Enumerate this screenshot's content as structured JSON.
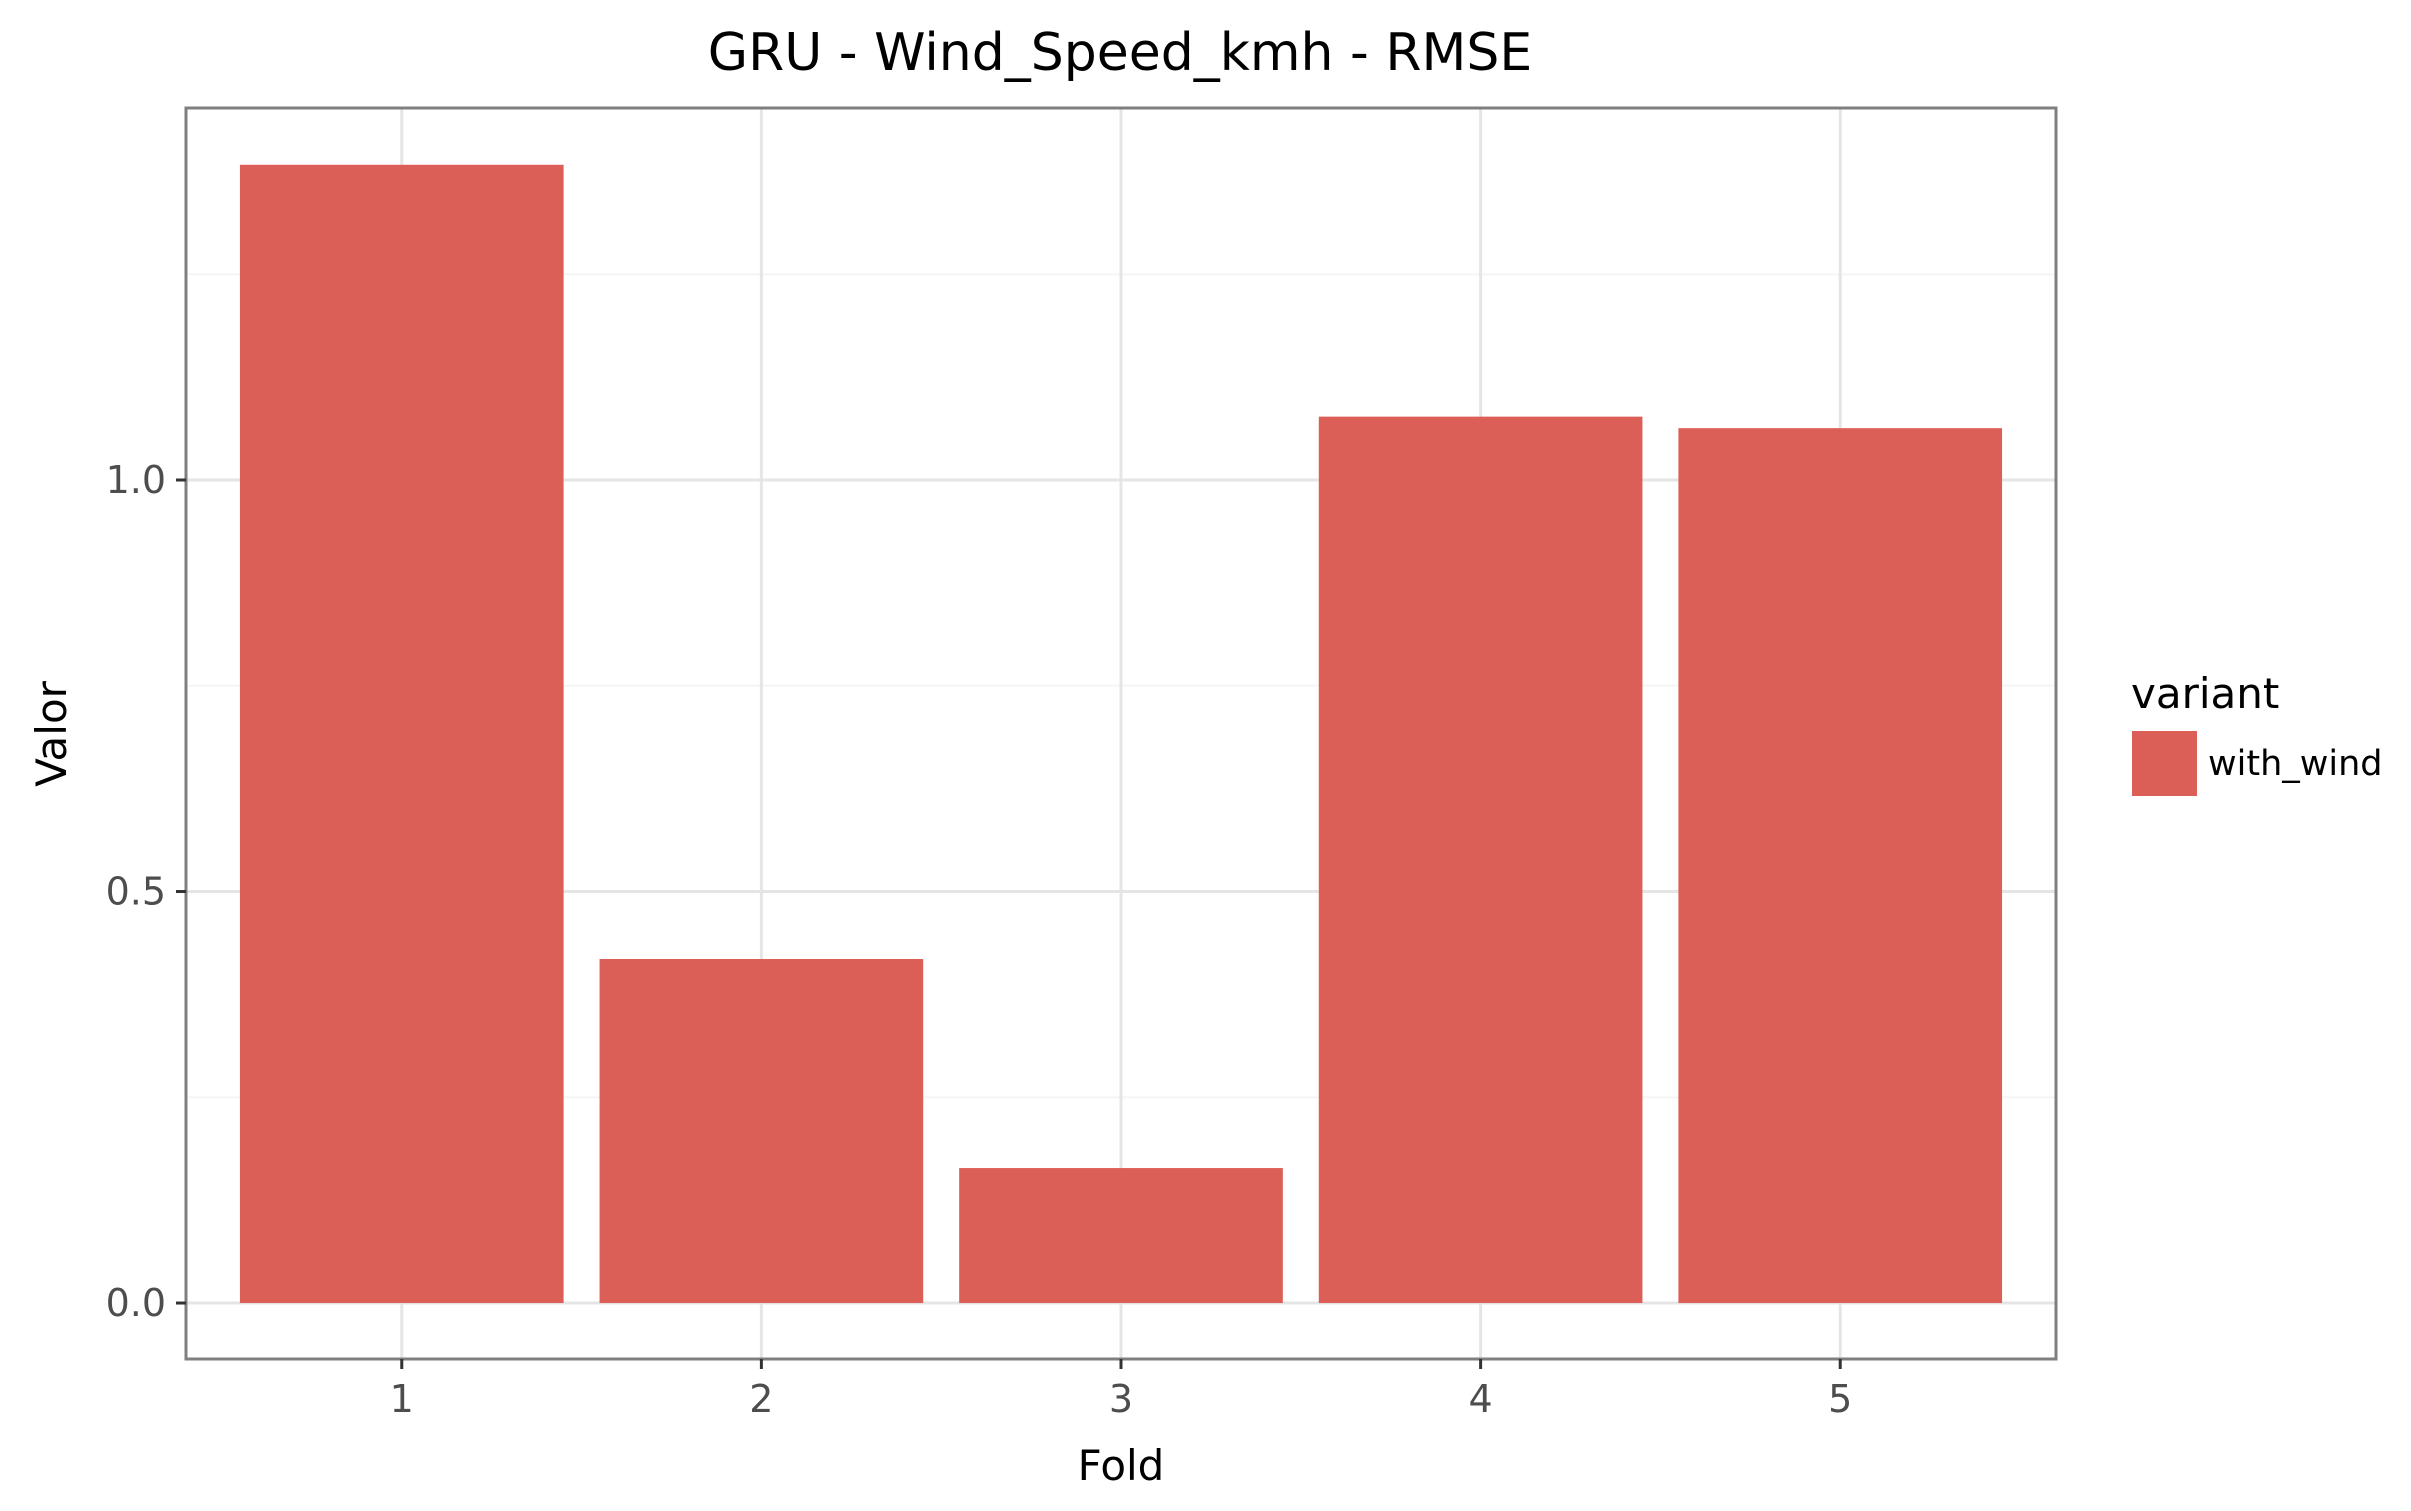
{
  "chart_data": {
    "type": "bar",
    "title": "GRU - Wind_Speed_kmh - RMSE",
    "xlabel": "Fold",
    "ylabel": "Valor",
    "categories": [
      "1",
      "2",
      "3",
      "4",
      "5"
    ],
    "series": [
      {
        "name": "with_wind",
        "values": [
          1.383,
          0.418,
          0.164,
          1.077,
          1.063
        ]
      }
    ],
    "ylim": [
      -0.068,
      1.452
    ],
    "yticks": [
      0.0,
      0.5,
      1.0
    ],
    "ytick_labels": [
      "0.0",
      "0.5",
      "1.0"
    ],
    "grid": true,
    "legend": {
      "title": "variant",
      "position": "right"
    },
    "colors": {
      "bar": "#dc5f57",
      "panel_border": "#7f7f7f",
      "grid_major": "#e5e5e5",
      "grid_minor": "#f5f5f5",
      "tick_text": "#4d4d4d"
    }
  }
}
